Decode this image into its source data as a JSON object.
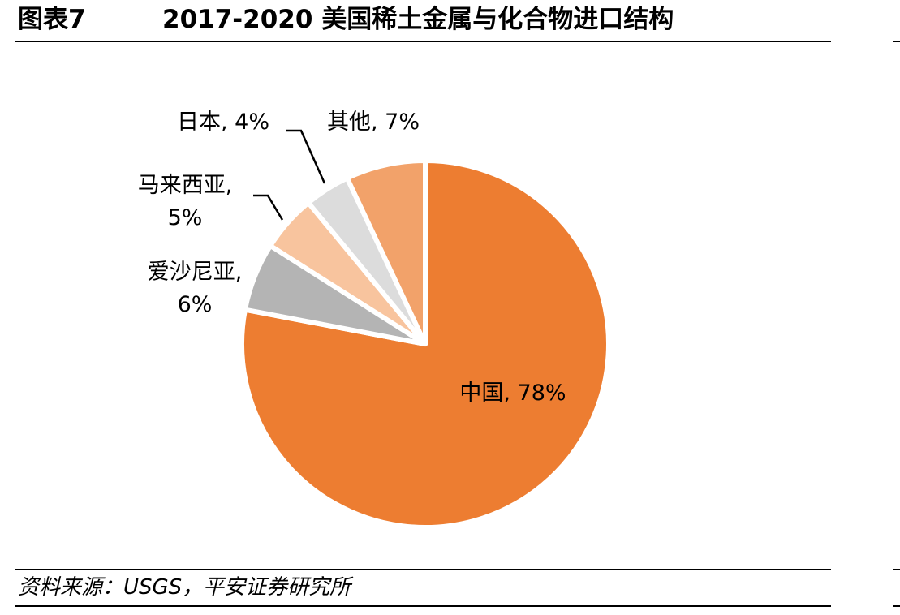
{
  "figure": {
    "number": "图表7",
    "title": "2017-2020 美国稀土金属与化合物进口结构"
  },
  "source": "资料来源：USGS，平安证券研究所",
  "chart_data": {
    "type": "pie",
    "title": "",
    "slices": [
      {
        "label": "中国, 78%",
        "name": "中国",
        "value": 78,
        "color": "#ED7D31"
      },
      {
        "label": "爱沙尼亚,\n6%",
        "name": "爱沙尼亚",
        "value": 6,
        "color": "#B4B4B4"
      },
      {
        "label": "马来西亚,\n5%",
        "name": "马来西亚",
        "value": 5,
        "color": "#F8C49E"
      },
      {
        "label": "日本, 4%",
        "name": "日本",
        "value": 4,
        "color": "#DCDCDC"
      },
      {
        "label": "其他, 7%",
        "name": "其他",
        "value": 7,
        "color": "#F2A26A"
      }
    ]
  }
}
